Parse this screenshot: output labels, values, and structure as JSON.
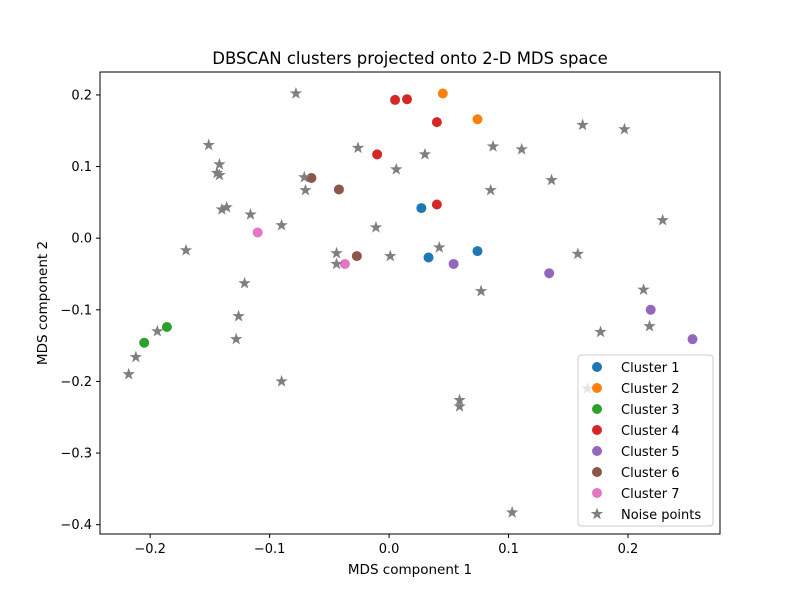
{
  "chart_data": {
    "type": "scatter",
    "title": "DBSCAN clusters projected onto 2-D MDS space",
    "xlabel": "MDS component 1",
    "ylabel": "MDS component 2",
    "xlim": [
      -0.242,
      0.277
    ],
    "ylim": [
      -0.413,
      0.232
    ],
    "xticks": [
      -0.2,
      -0.1,
      0.0,
      0.1,
      0.2
    ],
    "xtick_labels": [
      "−0.2",
      "−0.1",
      "0.0",
      "0.1",
      "0.2"
    ],
    "yticks": [
      0.2,
      0.1,
      0.0,
      -0.1,
      -0.2,
      -0.3,
      -0.4
    ],
    "ytick_labels": [
      "0.2",
      "0.1",
      "0.0",
      "−0.1",
      "−0.2",
      "−0.3",
      "−0.4"
    ],
    "grid": false,
    "legend_placement": "lower right",
    "series": [
      {
        "name": "Cluster 1",
        "marker": "circle",
        "color": "#1f77b4",
        "points": [
          [
            0.027,
            0.042
          ],
          [
            0.033,
            -0.027
          ],
          [
            0.074,
            -0.018
          ]
        ]
      },
      {
        "name": "Cluster 2",
        "marker": "circle",
        "color": "#ff7f0e",
        "points": [
          [
            0.045,
            0.202
          ],
          [
            0.074,
            0.166
          ]
        ]
      },
      {
        "name": "Cluster 3",
        "marker": "circle",
        "color": "#2ca02c",
        "points": [
          [
            -0.205,
            -0.146
          ],
          [
            -0.186,
            -0.124
          ]
        ]
      },
      {
        "name": "Cluster 4",
        "marker": "circle",
        "color": "#d62728",
        "points": [
          [
            0.005,
            0.193
          ],
          [
            0.015,
            0.194
          ],
          [
            0.04,
            0.162
          ],
          [
            -0.01,
            0.117
          ],
          [
            0.04,
            0.047
          ]
        ]
      },
      {
        "name": "Cluster 5",
        "marker": "circle",
        "color": "#9467bd",
        "points": [
          [
            0.054,
            -0.036
          ],
          [
            0.134,
            -0.049
          ],
          [
            0.219,
            -0.1
          ],
          [
            0.254,
            -0.141
          ]
        ]
      },
      {
        "name": "Cluster 6",
        "marker": "circle",
        "color": "#8c564b",
        "points": [
          [
            -0.065,
            0.084
          ],
          [
            -0.042,
            0.068
          ],
          [
            -0.027,
            -0.025
          ]
        ]
      },
      {
        "name": "Cluster 7",
        "marker": "circle",
        "color": "#e377c2",
        "points": [
          [
            -0.11,
            0.008
          ],
          [
            -0.037,
            -0.036
          ]
        ]
      },
      {
        "name": "Noise points",
        "marker": "star",
        "color": "#7f7f7f",
        "points": [
          [
            -0.078,
            0.202
          ],
          [
            -0.151,
            0.13
          ],
          [
            -0.142,
            0.103
          ],
          [
            -0.144,
            0.091
          ],
          [
            -0.142,
            0.088
          ],
          [
            -0.14,
            0.04
          ],
          [
            -0.136,
            0.043
          ],
          [
            -0.116,
            0.033
          ],
          [
            -0.09,
            0.018
          ],
          [
            -0.17,
            -0.017
          ],
          [
            -0.121,
            -0.063
          ],
          [
            -0.126,
            -0.109
          ],
          [
            -0.128,
            -0.141
          ],
          [
            -0.09,
            -0.2
          ],
          [
            -0.194,
            -0.13
          ],
          [
            -0.212,
            -0.166
          ],
          [
            -0.218,
            -0.19
          ],
          [
            -0.071,
            0.085
          ],
          [
            -0.07,
            0.067
          ],
          [
            -0.026,
            0.126
          ],
          [
            0.006,
            0.096
          ],
          [
            -0.011,
            0.015
          ],
          [
            -0.044,
            -0.021
          ],
          [
            -0.044,
            -0.036
          ],
          [
            0.001,
            -0.025
          ],
          [
            0.03,
            0.117
          ],
          [
            0.042,
            -0.013
          ],
          [
            0.077,
            -0.074
          ],
          [
            0.087,
            0.128
          ],
          [
            0.111,
            0.124
          ],
          [
            0.085,
            0.067
          ],
          [
            0.136,
            0.081
          ],
          [
            0.162,
            0.158
          ],
          [
            0.197,
            0.152
          ],
          [
            0.229,
            0.025
          ],
          [
            0.158,
            -0.022
          ],
          [
            0.213,
            -0.072
          ],
          [
            0.218,
            -0.123
          ],
          [
            0.177,
            -0.131
          ],
          [
            0.059,
            -0.226
          ],
          [
            0.059,
            -0.235
          ],
          [
            0.103,
            -0.383
          ],
          [
            0.166,
            -0.21
          ]
        ]
      }
    ]
  }
}
